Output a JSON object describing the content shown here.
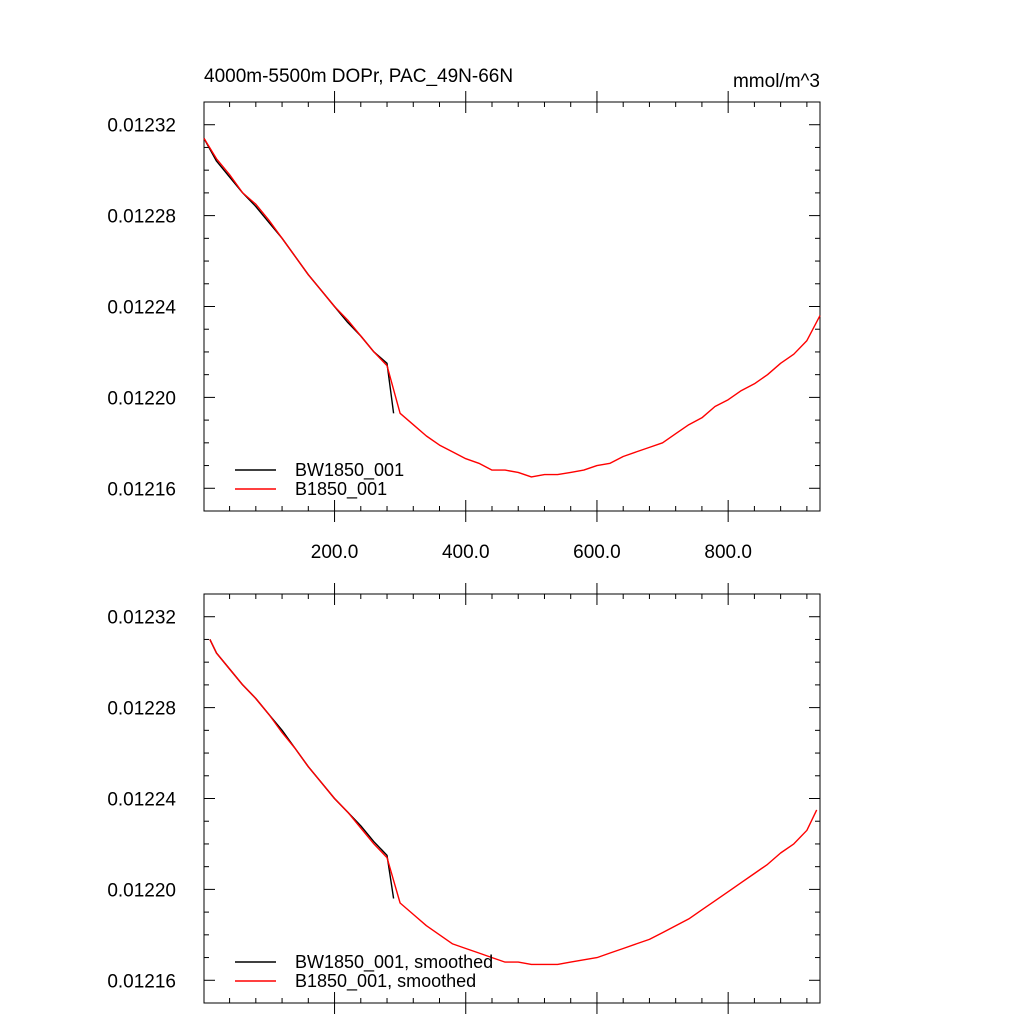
{
  "chart_data": [
    {
      "type": "line",
      "title": "4000m-5500m DOPr, PAC_49N-66N",
      "units": "mmol/m^3",
      "x_ticks": [
        200,
        400,
        600,
        800
      ],
      "x_tick_labels": [
        "200.0",
        "400.0",
        "600.0",
        "800.0"
      ],
      "xlim": [
        1,
        940
      ],
      "ylim": [
        0.01215,
        0.01233
      ],
      "y_ticks": [
        0.01216,
        0.0122,
        0.01224,
        0.01228,
        0.01232
      ],
      "y_tick_labels": [
        "0.01216",
        "0.01220",
        "0.01224",
        "0.01228",
        "0.01232"
      ],
      "legend_position": "bottom-left",
      "series": [
        {
          "name": "BW1850_001",
          "color": "#000000",
          "x": [
            1,
            20,
            40,
            60,
            80,
            100,
            120,
            140,
            160,
            180,
            200,
            220,
            240,
            260,
            280,
            290
          ],
          "y": [
            0.012314,
            0.012304,
            0.012297,
            0.01229,
            0.012284,
            0.012277,
            0.01227,
            0.012262,
            0.012254,
            0.012247,
            0.01224,
            0.012233,
            0.012227,
            0.01222,
            0.012215,
            0.012193
          ]
        },
        {
          "name": "B1850_001",
          "color": "#ff0000",
          "x": [
            1,
            20,
            40,
            60,
            80,
            100,
            120,
            140,
            160,
            180,
            200,
            220,
            240,
            260,
            280,
            300,
            320,
            340,
            360,
            380,
            400,
            420,
            440,
            460,
            480,
            500,
            520,
            540,
            560,
            580,
            600,
            620,
            640,
            660,
            680,
            700,
            720,
            740,
            760,
            780,
            800,
            820,
            840,
            860,
            880,
            900,
            920,
            940
          ],
          "y": [
            0.012314,
            0.012305,
            0.012298,
            0.01229,
            0.012285,
            0.012278,
            0.01227,
            0.012262,
            0.012254,
            0.012247,
            0.01224,
            0.012234,
            0.012227,
            0.01222,
            0.012214,
            0.012193,
            0.012188,
            0.012183,
            0.012179,
            0.012176,
            0.012173,
            0.012171,
            0.012168,
            0.012168,
            0.012167,
            0.012165,
            0.012166,
            0.012166,
            0.012167,
            0.012168,
            0.01217,
            0.012171,
            0.012174,
            0.012176,
            0.012178,
            0.01218,
            0.012184,
            0.012188,
            0.012191,
            0.012196,
            0.012199,
            0.012203,
            0.012206,
            0.01221,
            0.012215,
            0.012219,
            0.012225,
            0.012236
          ]
        }
      ]
    },
    {
      "type": "line",
      "xlim": [
        1,
        940
      ],
      "ylim": [
        0.01215,
        0.01233
      ],
      "y_ticks": [
        0.01216,
        0.0122,
        0.01224,
        0.01228,
        0.01232
      ],
      "y_tick_labels": [
        "0.01216",
        "0.01220",
        "0.01224",
        "0.01228",
        "0.01232"
      ],
      "legend_position": "bottom-left",
      "series": [
        {
          "name": "BW1850_001, smoothed",
          "color": "#000000",
          "x": [
            10,
            20,
            40,
            60,
            80,
            100,
            120,
            140,
            160,
            180,
            200,
            220,
            240,
            260,
            280,
            290
          ],
          "y": [
            0.01231,
            0.012304,
            0.012297,
            0.01229,
            0.012284,
            0.012277,
            0.01227,
            0.012262,
            0.012254,
            0.012247,
            0.01224,
            0.012234,
            0.012228,
            0.012221,
            0.012215,
            0.012196
          ]
        },
        {
          "name": "B1850_001, smoothed",
          "color": "#ff0000",
          "x": [
            10,
            20,
            40,
            60,
            80,
            100,
            120,
            140,
            160,
            180,
            200,
            220,
            240,
            260,
            280,
            300,
            320,
            340,
            360,
            380,
            400,
            420,
            440,
            460,
            480,
            500,
            520,
            540,
            560,
            580,
            600,
            620,
            640,
            660,
            680,
            700,
            720,
            740,
            760,
            780,
            800,
            820,
            840,
            860,
            880,
            900,
            920,
            935
          ],
          "y": [
            0.01231,
            0.012304,
            0.012297,
            0.01229,
            0.012284,
            0.012277,
            0.012269,
            0.012262,
            0.012254,
            0.012247,
            0.01224,
            0.012234,
            0.012227,
            0.01222,
            0.012214,
            0.012194,
            0.012189,
            0.012184,
            0.01218,
            0.012176,
            0.012174,
            0.012172,
            0.01217,
            0.012168,
            0.012168,
            0.012167,
            0.012167,
            0.012167,
            0.012168,
            0.012169,
            0.01217,
            0.012172,
            0.012174,
            0.012176,
            0.012178,
            0.012181,
            0.012184,
            0.012187,
            0.012191,
            0.012195,
            0.012199,
            0.012203,
            0.012207,
            0.012211,
            0.012216,
            0.01222,
            0.012226,
            0.012235
          ]
        }
      ]
    }
  ]
}
